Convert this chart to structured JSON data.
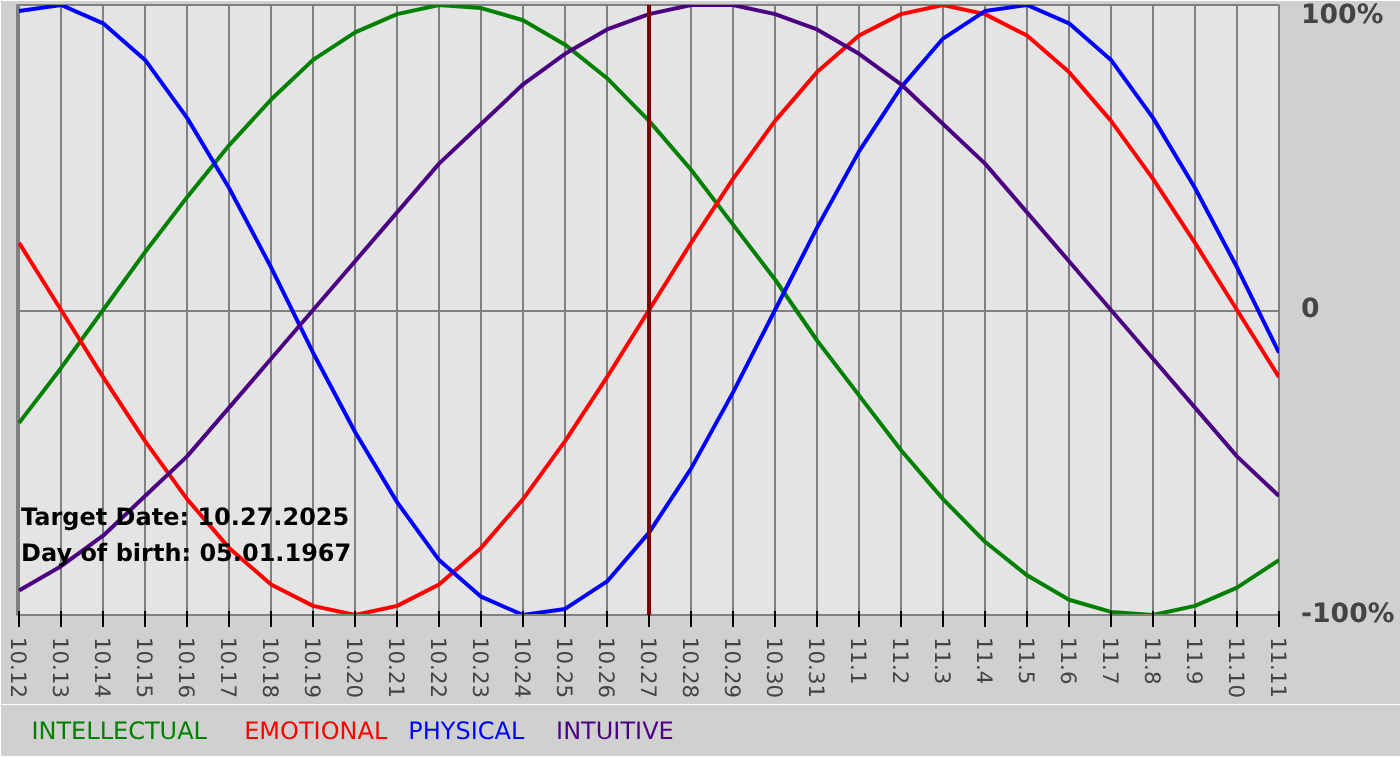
{
  "chart_data": {
    "type": "line",
    "categories": [
      "10.12",
      "10.13",
      "10.14",
      "10.15",
      "10.16",
      "10.17",
      "10.18",
      "10.19",
      "10.20",
      "10.21",
      "10.22",
      "10.23",
      "10.24",
      "10.25",
      "10.26",
      "10.27",
      "10.28",
      "10.29",
      "10.30",
      "10.31",
      "11.1",
      "11.2",
      "11.3",
      "11.4",
      "11.5",
      "11.6",
      "11.7",
      "11.8",
      "11.9",
      "11.10",
      "11.11"
    ],
    "series": [
      {
        "name": "INTELLECTUAL",
        "color": "#008000",
        "values": [
          -37,
          -19,
          0,
          19,
          37,
          54,
          69,
          82,
          91,
          97,
          100,
          99,
          95,
          87,
          76,
          62,
          46,
          28,
          10,
          -10,
          -28,
          -46,
          -62,
          -76,
          -87,
          -95,
          -99,
          -100,
          -97,
          -91,
          -82
        ]
      },
      {
        "name": "EMOTIONAL",
        "color": "#ff0000",
        "values": [
          22,
          0,
          -22,
          -43,
          -62,
          -78,
          -90,
          -97,
          -100,
          -97,
          -90,
          -78,
          -62,
          -43,
          -22,
          0,
          22,
          43,
          62,
          78,
          90,
          97,
          100,
          97,
          90,
          78,
          62,
          43,
          22,
          0,
          -22
        ]
      },
      {
        "name": "PHYSICAL",
        "color": "#0000ff",
        "values": [
          98,
          100,
          94,
          82,
          63,
          40,
          14,
          -14,
          -40,
          -63,
          -82,
          -94,
          -100,
          -98,
          -89,
          -73,
          -52,
          -27,
          0,
          27,
          52,
          73,
          89,
          98,
          100,
          94,
          82,
          63,
          40,
          14,
          -14
        ]
      },
      {
        "name": "INTUITIVE",
        "color": "#4b0082",
        "values": [
          -92,
          -84,
          -74,
          -61,
          -48,
          -32,
          -16,
          0,
          16,
          32,
          48,
          61,
          74,
          84,
          92,
          97,
          100,
          100,
          97,
          92,
          84,
          74,
          61,
          48,
          32,
          16,
          0,
          -16,
          -32,
          -48,
          -61
        ]
      }
    ],
    "ylim": [
      -100,
      100
    ],
    "yticks": [
      {
        "value": 100,
        "label": "100%"
      },
      0,
      {
        "value": -100,
        "label": "-100%"
      }
    ],
    "ref_lines": [
      {
        "axis": "x",
        "value": "10.27",
        "color": "#800000"
      }
    ],
    "annotations": [
      "Target Date: 10.27.2025",
      "Day of birth: 05.01.1967"
    ],
    "grid": true,
    "line_style": "solid"
  }
}
